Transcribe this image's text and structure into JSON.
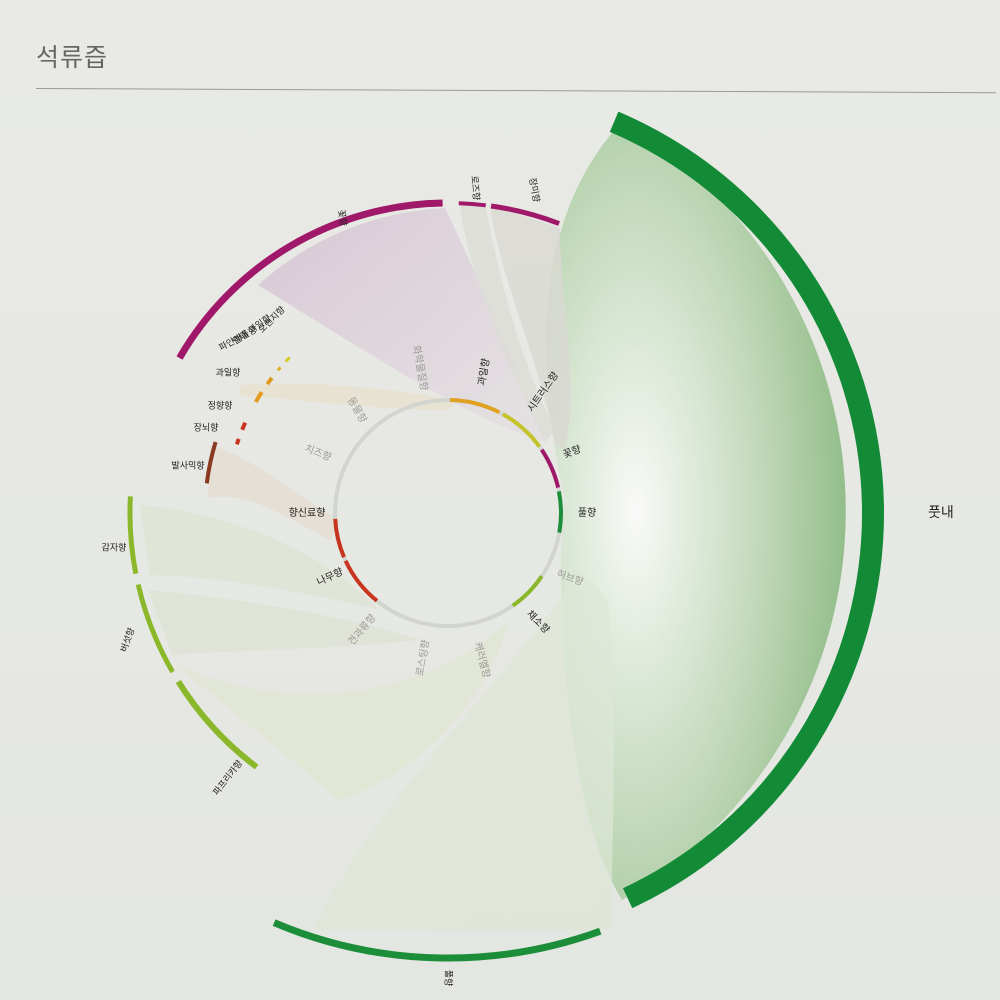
{
  "page": {
    "title": "석류즙"
  },
  "chart_data": {
    "type": "chord",
    "title": "석류즙",
    "outer_categories": [
      {
        "name": "풋내",
        "color": "#128a36"
      },
      {
        "name": "풀향",
        "color": "#1c8e3a"
      },
      {
        "name": "파프리카향",
        "color": "#8bb82a"
      },
      {
        "name": "버섯향",
        "color": "#8bb82a"
      },
      {
        "name": "감자향",
        "color": "#8bb82a"
      },
      {
        "name": "발사믹향",
        "color": "#8b3a22"
      },
      {
        "name": "장뇌향",
        "color": "#c8351e"
      },
      {
        "name": "정향향",
        "color": "#c8351e"
      },
      {
        "name": "과일향",
        "color": "#e09a20"
      },
      {
        "name": "파인애플향",
        "color": "#e09a20"
      },
      {
        "name": "열대 과일향",
        "color": "#e0b020"
      },
      {
        "name": "오렌지향",
        "color": "#d4cc28"
      },
      {
        "name": "꽃향",
        "color": "#a0186a"
      },
      {
        "name": "로즈향",
        "color": "#a0186a"
      },
      {
        "name": "장미향",
        "color": "#a0186a"
      }
    ],
    "inner_categories": [
      {
        "name": "과일향",
        "color": "#e0a020",
        "active": true
      },
      {
        "name": "시트러스향",
        "color": "#c4c42a",
        "active": true
      },
      {
        "name": "꽃향",
        "color": "#a0186a",
        "active": true
      },
      {
        "name": "풀향",
        "color": "#1c8e3a",
        "active": true
      },
      {
        "name": "허브향",
        "color": "#cfd1cd",
        "active": false
      },
      {
        "name": "채소향",
        "color": "#8bb82a",
        "active": true
      },
      {
        "name": "캐러멜향",
        "color": "#cfd1cd",
        "active": false
      },
      {
        "name": "로스팅향",
        "color": "#cfd1cd",
        "active": false
      },
      {
        "name": "견과류향",
        "color": "#cfd1cd",
        "active": false
      },
      {
        "name": "나무향",
        "color": "#c8351e",
        "active": true
      },
      {
        "name": "향신료향",
        "color": "#c8351e",
        "active": true
      },
      {
        "name": "치즈향",
        "color": "#cfd1cd",
        "active": false
      },
      {
        "name": "동물향",
        "color": "#cfd1cd",
        "active": false
      },
      {
        "name": "화학물질향",
        "color": "#cfd1cd",
        "active": false
      }
    ]
  }
}
